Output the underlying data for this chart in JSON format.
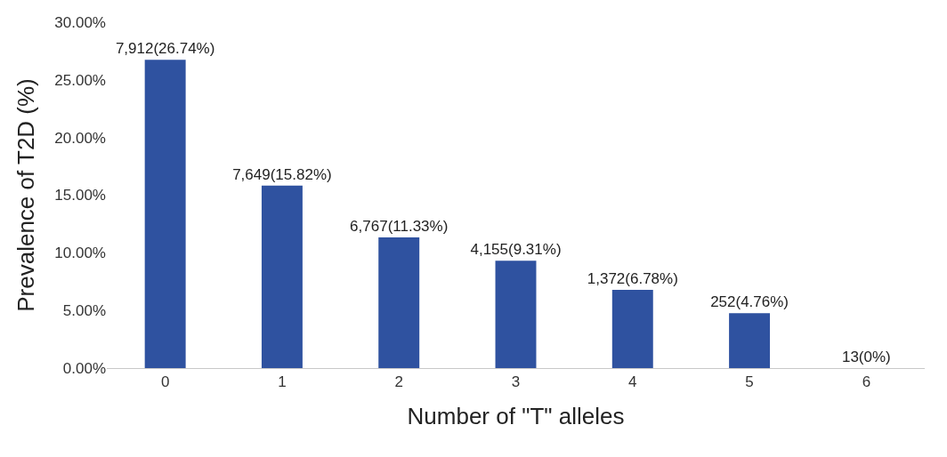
{
  "chart_data": {
    "type": "bar",
    "xlabel": "Number of \"T\" alleles",
    "ylabel": "Prevalence of T2D (%)",
    "categories": [
      "0",
      "1",
      "2",
      "3",
      "4",
      "5",
      "6"
    ],
    "values": [
      26.74,
      15.82,
      11.33,
      9.31,
      6.78,
      4.76,
      0
    ],
    "value_labels": [
      "7,912(26.74%)",
      "7,649(15.82%)",
      "6,767(11.33%)",
      "4,155(9.31%)",
      "1,372(6.78%)",
      "252(4.76%)",
      "13(0%)"
    ],
    "color": "#2f52a0",
    "ylim": [
      0,
      30
    ],
    "yticks": [
      {
        "value": 0,
        "label": "0.00%"
      },
      {
        "value": 5,
        "label": "5.00%"
      },
      {
        "value": 10,
        "label": "10.00%"
      },
      {
        "value": 15,
        "label": "15.00%"
      },
      {
        "value": 20,
        "label": "20.00%"
      },
      {
        "value": 25,
        "label": "25.00%"
      },
      {
        "value": 30,
        "label": "30.00%"
      }
    ],
    "grid": false
  }
}
